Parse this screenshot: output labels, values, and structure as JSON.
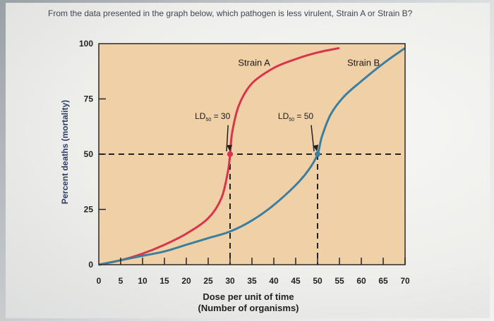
{
  "question": "From the data presented in the graph below, which pathogen is less virulent, Strain A or Strain B?",
  "chart_data": {
    "type": "line",
    "title": "",
    "xlabel_lines": [
      "Dose per unit of time",
      "(Number of organisms)"
    ],
    "ylabel": "Percent deaths (mortality)",
    "xlim": [
      0,
      70
    ],
    "ylim": [
      0,
      100
    ],
    "x_ticks": [
      0,
      5,
      10,
      15,
      20,
      25,
      30,
      35,
      40,
      45,
      50,
      55,
      60,
      65,
      70
    ],
    "y_ticks": [
      0,
      25,
      50,
      75,
      100
    ],
    "grid": false,
    "series": [
      {
        "name": "Strain A",
        "color": "#d8344c",
        "points": [
          [
            0,
            0
          ],
          [
            5,
            2
          ],
          [
            10,
            5
          ],
          [
            15,
            9
          ],
          [
            20,
            14
          ],
          [
            25,
            21
          ],
          [
            28,
            30
          ],
          [
            29.5,
            42
          ],
          [
            30,
            50
          ],
          [
            30.5,
            60
          ],
          [
            32,
            72
          ],
          [
            35,
            82
          ],
          [
            40,
            89
          ],
          [
            45,
            93
          ],
          [
            50,
            96
          ],
          [
            55,
            98
          ]
        ]
      },
      {
        "name": "Strain B",
        "color": "#3a7fa0",
        "points": [
          [
            0,
            0
          ],
          [
            5,
            2
          ],
          [
            10,
            4
          ],
          [
            15,
            6
          ],
          [
            20,
            9
          ],
          [
            25,
            12
          ],
          [
            30,
            15
          ],
          [
            35,
            20
          ],
          [
            40,
            27
          ],
          [
            45,
            36
          ],
          [
            48,
            43
          ],
          [
            50,
            50
          ],
          [
            51,
            58
          ],
          [
            53,
            68
          ],
          [
            56,
            76
          ],
          [
            60,
            83
          ],
          [
            65,
            91
          ],
          [
            70,
            98
          ]
        ]
      }
    ],
    "annotations": [
      {
        "label_main": "LD",
        "label_sub": "50",
        "label_rest": " = 30",
        "target": [
          30,
          50
        ],
        "color": "#d8344c"
      },
      {
        "label_main": "LD",
        "label_sub": "50",
        "label_rest": " = 50",
        "target": [
          50,
          50
        ],
        "color": "#3a7fa0"
      }
    ]
  }
}
